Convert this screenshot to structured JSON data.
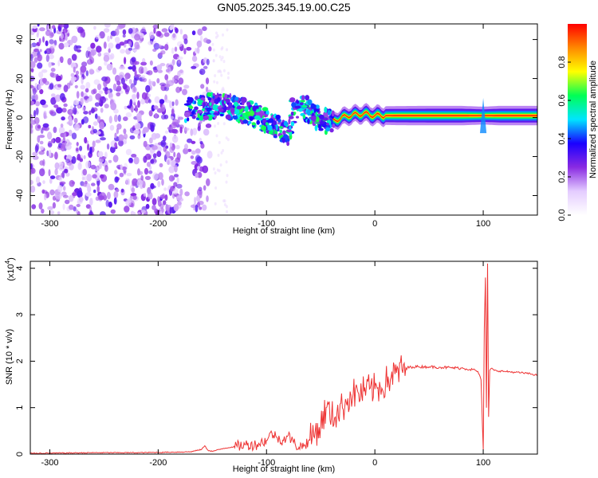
{
  "title": "GN05.2025.345.19.00.C25",
  "chart_data": [
    {
      "type": "heatmap",
      "title": "GN05.2025.345.19.00.C25",
      "xlabel": "Height of straight line (km)",
      "ylabel": "Frequency (Hz)",
      "xlim": [
        -318,
        150
      ],
      "ylim": [
        -50,
        48
      ],
      "x_ticks": [
        -300,
        -200,
        -100,
        0,
        100
      ],
      "y_ticks": [
        -40,
        -20,
        0,
        20,
        40
      ],
      "colorbar": {
        "label": "Normalized spectral amplitude",
        "range": [
          0,
          1
        ],
        "ticks": [
          0.0,
          0.2,
          0.4,
          0.6,
          0.8
        ],
        "colors": [
          "#ffffff",
          "#e4ccff",
          "#8a2be2",
          "#1a00ff",
          "#00e5ff",
          "#00ff55",
          "#ffff00",
          "#ff8800",
          "#ff0000"
        ]
      },
      "noise_region_x": [
        -318,
        -152
      ],
      "ridge": [
        {
          "x": -175,
          "f": 3,
          "amp": 0.25
        },
        {
          "x": -165,
          "f": 5,
          "amp": 0.35
        },
        {
          "x": -150,
          "f": 6,
          "amp": 0.35
        },
        {
          "x": -130,
          "f": 5,
          "amp": 0.35
        },
        {
          "x": -110,
          "f": 1,
          "amp": 0.45
        },
        {
          "x": -95,
          "f": -3,
          "amp": 0.45
        },
        {
          "x": -80,
          "f": -8,
          "amp": 0.4
        },
        {
          "x": -70,
          "f": 8,
          "amp": 0.4
        },
        {
          "x": -60,
          "f": 3,
          "amp": 0.45
        },
        {
          "x": -50,
          "f": -2,
          "amp": 0.5
        },
        {
          "x": -40,
          "f": -2,
          "amp": 0.55
        },
        {
          "x": -25,
          "f": 1,
          "amp": 0.6
        },
        {
          "x": -10,
          "f": 2,
          "amp": 0.65
        },
        {
          "x": 0,
          "f": 1,
          "amp": 0.75
        },
        {
          "x": 20,
          "f": 1,
          "amp": 0.85
        },
        {
          "x": 50,
          "f": 1,
          "amp": 0.9
        },
        {
          "x": 80,
          "f": 1,
          "amp": 0.9
        },
        {
          "x": 100,
          "f": 1,
          "amp": 0.7
        },
        {
          "x": 115,
          "f": 1,
          "amp": 0.9
        },
        {
          "x": 150,
          "f": 1,
          "amp": 0.9
        }
      ]
    },
    {
      "type": "line",
      "xlabel": "Height of straight line (km)",
      "ylabel": "SNR (10 * v/v)",
      "y_multiplier": "(x10",
      "y_multiplier_exp": "4",
      "xlim": [
        -318,
        150
      ],
      "ylim": [
        0,
        4.15
      ],
      "x_ticks": [
        -300,
        -200,
        -100,
        0,
        100
      ],
      "y_ticks": [
        0,
        1,
        2,
        3,
        4
      ],
      "color": "#ee3333",
      "series": [
        {
          "x": [
            -318,
            -300,
            -260,
            -220,
            -190,
            -170,
            -160,
            -157,
            -154,
            -150,
            -140,
            -120,
            -110,
            -100,
            -95,
            -90,
            -85,
            -80,
            -75,
            -70,
            -65,
            -60,
            -55,
            -50,
            -45,
            -40,
            -35,
            -30,
            -25,
            -20,
            -15,
            -10,
            -5,
            0,
            5,
            10,
            15,
            20,
            25,
            30,
            35,
            40,
            45,
            50,
            60,
            70,
            80,
            90,
            95,
            98,
            100,
            101,
            102,
            103,
            104,
            105,
            106,
            108,
            110,
            120,
            130,
            140,
            150
          ],
          "y": [
            0.02,
            0.02,
            0.03,
            0.03,
            0.04,
            0.05,
            0.1,
            0.18,
            0.08,
            0.06,
            0.12,
            0.2,
            0.2,
            0.3,
            0.45,
            0.35,
            0.3,
            0.4,
            0.25,
            0.15,
            0.2,
            0.3,
            0.5,
            0.6,
            1.0,
            0.8,
            0.9,
            1.0,
            1.2,
            1.3,
            1.3,
            1.35,
            1.4,
            1.4,
            1.45,
            1.55,
            1.65,
            1.75,
            1.82,
            1.86,
            1.88,
            1.88,
            1.88,
            1.88,
            1.87,
            1.86,
            1.85,
            1.82,
            1.78,
            1.6,
            0.1,
            2.7,
            3.8,
            1.0,
            4.1,
            0.8,
            1.8,
            1.85,
            1.8,
            1.78,
            1.76,
            1.74,
            1.7
          ]
        }
      ]
    }
  ]
}
